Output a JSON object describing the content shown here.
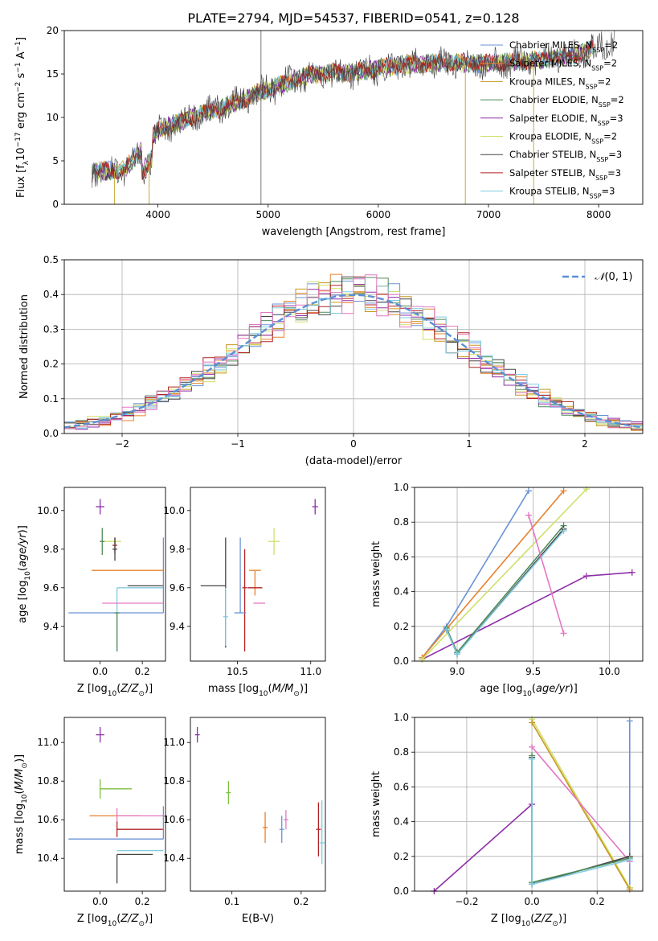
{
  "figure_title": "PLATE=2794, MJD=54537, FIBERID=0541, z=0.128",
  "models": [
    {
      "name": "Chabrier MILES",
      "nssp": "2",
      "color": "#6a93d6"
    },
    {
      "name": "Salpeter MILES",
      "nssp": "2",
      "color": "#e8812c"
    },
    {
      "name": "Kroupa MILES",
      "nssp": "2",
      "color": "#c9961f"
    },
    {
      "name": "Chabrier ELODIE",
      "nssp": "2",
      "color": "#4f8a5a"
    },
    {
      "name": "Salpeter ELODIE",
      "nssp": "3",
      "color": "#8e2fa8"
    },
    {
      "name": "Kroupa ELODIE",
      "nssp": "2",
      "color": "#cfe06a"
    },
    {
      "name": "Chabrier STELIB",
      "nssp": "3",
      "color": "#444444"
    },
    {
      "name": "Salpeter STELIB",
      "nssp": "3",
      "color": "#b22222"
    },
    {
      "name": "Kroupa STELIB",
      "nssp": "3",
      "color": "#7fcbe0"
    }
  ],
  "extra_colors": {
    "pink": "#e377c2",
    "green": "#7fbf3f",
    "dashed": "#5b8fd6"
  },
  "chart_data": [
    {
      "id": "spectrum",
      "type": "line",
      "xlabel": "wavelength [Angstrom, rest frame]",
      "ylabel": "Flux [f_λ10^{-17} erg cm^{-2} s^{-1} A^{-1}]",
      "xlim": [
        3150,
        8400
      ],
      "ylim": [
        0,
        20
      ],
      "xticks": [
        4000,
        5000,
        6000,
        7000,
        8000
      ],
      "yticks": [
        0,
        5,
        10,
        15,
        20
      ],
      "grid": false,
      "legend": "upper right",
      "continuum_x": [
        3400,
        3700,
        4000,
        4300,
        4600,
        5000,
        5400,
        5800,
        6200,
        6600,
        7000,
        7400,
        7800,
        8150
      ],
      "continuum_y": [
        3.7,
        4.0,
        8.5,
        10.0,
        11.2,
        13.2,
        15.0,
        15.2,
        16.0,
        16.3,
        16.2,
        16.5,
        17.2,
        18.8
      ]
    },
    {
      "id": "residual_hist",
      "type": "line",
      "xlabel": "(data-model)/error",
      "ylabel": "Normed distribution",
      "xlim": [
        -2.5,
        2.5
      ],
      "ylim": [
        0,
        0.5
      ],
      "xticks": [
        -2,
        -1,
        0,
        1,
        2
      ],
      "yticks": [
        0.0,
        0.1,
        0.2,
        0.3,
        0.4,
        0.5
      ],
      "grid": true,
      "legend": "upper right",
      "series": [
        {
          "name": "N(0,1)",
          "style": "dashed"
        }
      ],
      "bin_width": 0.1
    },
    {
      "id": "age_vs_Z",
      "type": "scatter",
      "xlabel": "Z [log10(Z/Z⊙)]",
      "ylabel": "age [log10(age/yr)]",
      "xlim": [
        -0.17,
        0.31
      ],
      "ylim": [
        9.22,
        10.12
      ],
      "xticks": [
        0.0,
        0.2
      ],
      "yticks": [
        9.4,
        9.6,
        9.8,
        10.0
      ],
      "points": [
        {
          "x": 0.0,
          "y": 10.02,
          "xerr": [
            0.02,
            0.02
          ],
          "yerr": [
            0.04,
            0.04
          ],
          "m": 4
        },
        {
          "x": 0.05,
          "y": 9.84,
          "xerr": [
            0.05,
            0.05
          ],
          "yerr": [
            0.0,
            0.0
          ],
          "m": 5
        },
        {
          "x": 0.01,
          "y": 9.84,
          "xerr": [
            0.0,
            0.0
          ],
          "yerr": [
            0.07,
            0.07
          ],
          "m": 3
        },
        {
          "x": 0.07,
          "y": 9.82,
          "xerr": [
            0.0,
            0.0
          ],
          "yerr": [
            0.04,
            0.04
          ],
          "m": 7
        },
        {
          "x": 0.07,
          "y": 9.8,
          "xerr": [
            0.0,
            0.0
          ],
          "yerr": [
            0.06,
            0.06
          ],
          "m": 6
        },
        {
          "x": 0.08,
          "y": 9.69,
          "xerr": [
            0.12,
            0.22
          ],
          "yerr": [
            0.0,
            0.0
          ],
          "m": 1
        },
        {
          "x": 0.13,
          "y": 9.61,
          "xerr": [
            0.0,
            0.17
          ],
          "yerr": [
            0.0,
            0.0
          ],
          "m": 6
        },
        {
          "x": 0.08,
          "y": 9.6,
          "xerr": [
            0.0,
            0.22
          ],
          "yerr": [
            0.33,
            0.0
          ],
          "m": 8
        },
        {
          "x": 0.08,
          "y": 9.52,
          "xerr": [
            0.07,
            0.22
          ],
          "yerr": [
            0.0,
            0.0
          ],
          "m": "pink"
        },
        {
          "x": 0.3,
          "y": 9.47,
          "xerr": [
            0.45,
            0.0
          ],
          "yerr": [
            0.0,
            0.39
          ],
          "m": 0
        },
        {
          "x": 0.08,
          "y": 9.47,
          "xerr": [
            0.0,
            0.0
          ],
          "yerr": [
            0.2,
            0.0
          ],
          "m": 3
        }
      ]
    },
    {
      "id": "age_vs_mass",
      "type": "scatter",
      "xlabel": "mass [log10(M/M⊙)]",
      "ylabel": "",
      "xlim": [
        10.18,
        11.1
      ],
      "ylim": [
        9.22,
        10.12
      ],
      "xticks": [
        10.5,
        11.0
      ],
      "yticks": [
        9.4,
        9.6,
        9.8,
        10.0
      ],
      "points": [
        {
          "x": 11.03,
          "y": 10.02,
          "xerr": [
            0.02,
            0.02
          ],
          "yerr": [
            0.04,
            0.04
          ],
          "m": 4
        },
        {
          "x": 10.75,
          "y": 9.84,
          "xerr": [
            0.04,
            0.04
          ],
          "yerr": [
            0.07,
            0.07
          ],
          "m": 5
        },
        {
          "x": 10.62,
          "y": 9.69,
          "xerr": [
            0.04,
            0.04
          ],
          "yerr": [
            0.13,
            0.0
          ],
          "m": 1
        },
        {
          "x": 10.62,
          "y": 9.6,
          "xerr": [
            0.05,
            0.05
          ],
          "yerr": [
            0.0,
            0.0
          ],
          "m": 7
        },
        {
          "x": 10.42,
          "y": 9.61,
          "xerr": [
            0.17,
            0.0
          ],
          "yerr": [
            0.32,
            0.25
          ],
          "m": 6
        },
        {
          "x": 10.55,
          "y": 9.6,
          "xerr": [
            0.0,
            0.0
          ],
          "yerr": [
            0.33,
            0.2
          ],
          "m": 7
        },
        {
          "x": 10.65,
          "y": 9.52,
          "xerr": [
            0.04,
            0.04
          ],
          "yerr": [
            0.0,
            0.0
          ],
          "m": "pink"
        },
        {
          "x": 10.52,
          "y": 9.47,
          "xerr": [
            0.04,
            0.04
          ],
          "yerr": [
            0.0,
            0.39
          ],
          "m": 0
        },
        {
          "x": 10.42,
          "y": 9.45,
          "xerr": [
            0.0,
            0.0
          ],
          "yerr": [
            0.15,
            0.15
          ],
          "m": 8
        }
      ]
    },
    {
      "id": "weight_vs_age",
      "type": "line",
      "xlabel": "age [log10(age/yr)]",
      "ylabel": "mass weight",
      "xlim": [
        8.72,
        10.22
      ],
      "ylim": [
        0,
        1
      ],
      "xticks": [
        9.0,
        9.5,
        10.0
      ],
      "yticks": [
        0.0,
        0.2,
        0.4,
        0.6,
        0.8,
        1.0
      ],
      "grid": true,
      "series": [
        {
          "m": 4,
          "x": [
            8.77,
            9.85,
            10.15
          ],
          "y": [
            0.01,
            0.49,
            0.51
          ]
        },
        {
          "m": 0,
          "x": [
            8.77,
            8.93,
            9.47
          ],
          "y": [
            0.02,
            0.2,
            0.98
          ]
        },
        {
          "m": 1,
          "x": [
            8.77,
            9.7
          ],
          "y": [
            0.02,
            0.98
          ]
        },
        {
          "m": 5,
          "x": [
            8.77,
            9.85
          ],
          "y": [
            0.01,
            0.99
          ]
        },
        {
          "m": 3,
          "x": [
            8.93,
            9.0,
            9.7
          ],
          "y": [
            0.19,
            0.05,
            0.78
          ]
        },
        {
          "m": 6,
          "x": [
            8.93,
            9.0,
            9.7
          ],
          "y": [
            0.18,
            0.04,
            0.76
          ]
        },
        {
          "m": 8,
          "x": [
            8.93,
            9.0,
            9.7
          ],
          "y": [
            0.18,
            0.04,
            0.75
          ]
        },
        {
          "m": "pink",
          "x": [
            9.47,
            9.7
          ],
          "y": [
            0.84,
            0.16
          ]
        }
      ]
    },
    {
      "id": "mass_vs_Z",
      "type": "scatter",
      "xlabel": "Z [log10(Z/Z⊙)]",
      "ylabel": "mass [log10(M/M⊙)]",
      "xlim": [
        -0.17,
        0.31
      ],
      "ylim": [
        10.23,
        11.13
      ],
      "xticks": [
        0.0,
        0.2
      ],
      "yticks": [
        10.4,
        10.6,
        10.8,
        11.0
      ],
      "points": [
        {
          "x": 0.0,
          "y": 11.04,
          "xerr": [
            0.02,
            0.02
          ],
          "yerr": [
            0.04,
            0.04
          ],
          "m": 4
        },
        {
          "x": 0.0,
          "y": 10.76,
          "xerr": [
            0.0,
            0.15
          ],
          "yerr": [
            0.05,
            0.05
          ],
          "m": "green"
        },
        {
          "x": 0.02,
          "y": 10.62,
          "xerr": [
            0.07,
            0.17
          ],
          "yerr": [
            0.0,
            0.0
          ],
          "m": 1
        },
        {
          "x": 0.08,
          "y": 10.62,
          "xerr": [
            0.0,
            0.22
          ],
          "yerr": [
            0.04,
            0.04
          ],
          "m": "pink"
        },
        {
          "x": 0.08,
          "y": 10.55,
          "xerr": [
            0.0,
            0.22
          ],
          "yerr": [
            0.04,
            0.04
          ],
          "m": 7
        },
        {
          "x": 0.3,
          "y": 10.5,
          "xerr": [
            0.45,
            0.0
          ],
          "yerr": [
            0.0,
            0.17
          ],
          "m": 0
        },
        {
          "x": 0.08,
          "y": 10.44,
          "xerr": [
            0.0,
            0.22
          ],
          "yerr": [
            0.0,
            0.0
          ],
          "m": 8
        },
        {
          "x": 0.08,
          "y": 10.42,
          "xerr": [
            0.0,
            0.17
          ],
          "yerr": [
            0.15,
            0.0
          ],
          "m": 6
        }
      ]
    },
    {
      "id": "mass_vs_ebv",
      "type": "scatter",
      "xlabel": "E(B-V)",
      "ylabel": "",
      "xlim": [
        0.04,
        0.235
      ],
      "ylim": [
        10.23,
        11.13
      ],
      "xticks": [
        0.1,
        0.2
      ],
      "yticks": [
        10.4,
        10.6,
        10.8,
        11.0
      ],
      "points": [
        {
          "x": 0.05,
          "y": 11.04,
          "yerr": [
            0.04,
            0.04
          ],
          "m": 4
        },
        {
          "x": 0.095,
          "y": 10.74,
          "yerr": [
            0.06,
            0.06
          ],
          "m": "green"
        },
        {
          "x": 0.148,
          "y": 10.56,
          "yerr": [
            0.08,
            0.08
          ],
          "m": 1
        },
        {
          "x": 0.172,
          "y": 10.55,
          "yerr": [
            0.07,
            0.07
          ],
          "m": 0
        },
        {
          "x": 0.178,
          "y": 10.6,
          "yerr": [
            0.05,
            0.05
          ],
          "m": "pink"
        },
        {
          "x": 0.225,
          "y": 10.55,
          "yerr": [
            0.14,
            0.14
          ],
          "m": 7
        },
        {
          "x": 0.23,
          "y": 10.48,
          "yerr": [
            0.11,
            0.22
          ],
          "m": 8
        }
      ]
    },
    {
      "id": "weight_vs_Z",
      "type": "line",
      "xlabel": "Z [log10(Z/Z⊙)]",
      "ylabel": "mass weight",
      "xlim": [
        -0.36,
        0.34
      ],
      "ylim": [
        0,
        1
      ],
      "xticks": [
        -0.2,
        0.0,
        0.2
      ],
      "yticks": [
        0.0,
        0.2,
        0.4,
        0.6,
        0.8,
        1.0
      ],
      "grid": true,
      "series": [
        {
          "m": 4,
          "x": [
            -0.3,
            0.0
          ],
          "y": [
            0.0,
            0.5
          ]
        },
        {
          "m": 0,
          "x": [
            0.3,
            0.3
          ],
          "y": [
            0.02,
            0.98
          ]
        },
        {
          "m": 5,
          "x": [
            0.0,
            0.3
          ],
          "y": [
            0.99,
            0.02
          ]
        },
        {
          "m": 2,
          "x": [
            0.0,
            0.3
          ],
          "y": [
            0.97,
            0.01
          ]
        },
        {
          "m": "pink",
          "x": [
            0.0,
            0.3
          ],
          "y": [
            0.83,
            0.17
          ]
        },
        {
          "m": 6,
          "x": [
            0.0,
            0.0,
            0.3
          ],
          "y": [
            0.77,
            0.04,
            0.2
          ]
        },
        {
          "m": 3,
          "x": [
            0.0,
            0.0,
            0.3
          ],
          "y": [
            0.78,
            0.05,
            0.19
          ]
        },
        {
          "m": 8,
          "x": [
            0.0,
            0.0,
            0.3
          ],
          "y": [
            0.76,
            0.04,
            0.18
          ]
        }
      ]
    }
  ]
}
